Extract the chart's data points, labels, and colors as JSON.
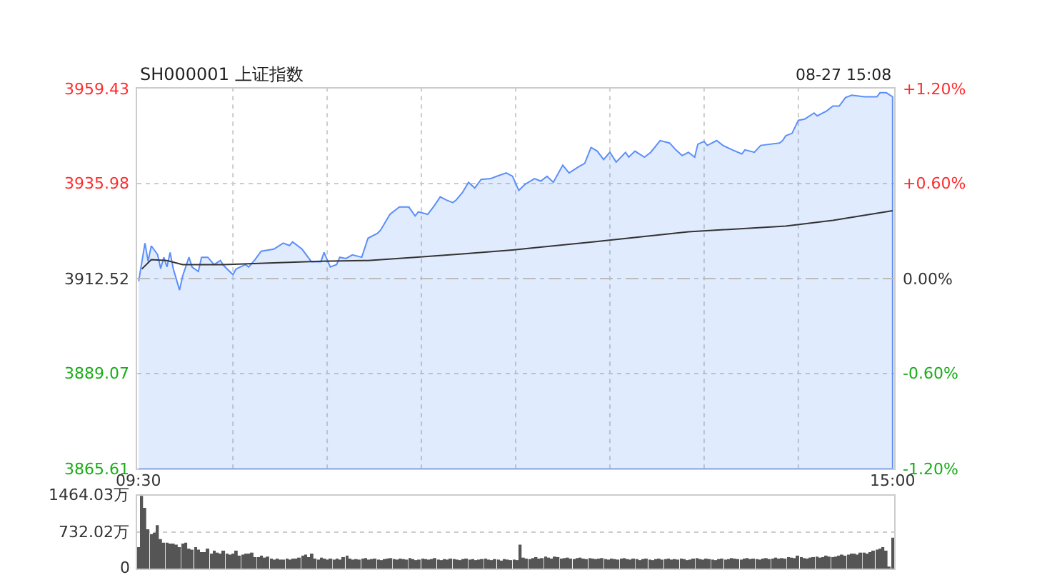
{
  "chart_data": [
    {
      "type": "area",
      "title": "SH000001 上证指数",
      "annotations": [
        "08-27 15:08"
      ],
      "categories": [
        "09:30",
        null,
        null,
        null,
        null,
        null,
        null,
        null,
        null,
        null,
        null,
        null,
        null,
        null,
        null,
        null,
        null,
        null,
        null,
        null,
        null,
        null,
        null,
        null,
        null,
        null,
        null,
        null,
        null,
        null,
        null,
        null,
        null,
        null,
        null,
        null,
        null,
        null,
        null,
        null,
        null,
        null,
        null,
        null,
        null,
        null,
        null,
        null,
        null,
        null,
        null,
        null,
        null,
        null,
        null,
        null,
        null,
        null,
        null,
        null,
        null,
        null,
        null,
        null,
        null,
        null,
        null,
        null,
        null,
        null,
        null,
        null,
        null,
        null,
        null,
        null,
        null,
        null,
        null,
        null,
        null,
        null,
        null,
        null,
        null,
        null,
        null,
        null,
        null,
        null,
        null,
        null,
        null,
        null,
        null,
        null,
        null,
        null,
        null,
        null,
        null,
        null,
        null,
        null,
        null,
        null,
        null,
        null,
        null,
        null,
        null,
        null,
        null,
        null,
        null,
        null,
        null,
        null,
        null,
        null,
        null,
        null,
        null,
        null,
        null,
        null,
        null,
        null,
        null,
        null,
        null,
        null,
        null,
        null,
        null,
        null,
        null,
        null,
        null,
        null,
        null,
        null,
        null,
        null,
        null,
        null,
        null,
        null,
        null,
        null,
        null,
        null,
        null,
        null,
        null,
        null,
        null,
        null,
        null,
        null,
        null,
        null,
        null,
        null,
        null,
        null,
        null,
        null,
        null,
        null,
        null,
        null,
        null,
        null,
        null,
        null,
        null,
        null,
        null,
        null,
        null,
        null,
        null,
        null,
        null,
        null,
        null,
        null,
        null,
        null,
        null,
        null,
        null,
        null,
        null,
        null,
        null,
        null,
        null,
        null,
        null,
        null,
        null,
        null,
        null,
        null,
        null,
        null,
        null,
        null,
        null,
        null,
        null,
        null,
        null,
        null,
        null,
        null,
        null,
        null,
        null,
        null,
        null,
        null,
        null,
        null,
        null,
        null,
        null,
        null,
        null,
        null,
        null,
        null,
        null,
        null,
        null,
        null,
        null,
        null,
        "15:00"
      ],
      "ylim": [
        3865.61,
        3959.43
      ],
      "yticks": [
        3865.61,
        3889.07,
        3912.52,
        3935.98,
        3959.43
      ],
      "y2lim": [
        -1.2,
        1.2
      ],
      "y2ticks": [
        {
          "value": -1.2,
          "label": "-1.20%"
        },
        {
          "value": -0.6,
          "label": "-0.60%"
        },
        {
          "value": 0,
          "label": "0.00%"
        },
        {
          "value": 0.6,
          "label": "+0.60%"
        },
        {
          "value": 1.2,
          "label": "+1.20%"
        }
      ],
      "grid": true,
      "ref_lines": [
        {
          "axis": "y",
          "value": 3912.52,
          "line_style": "dashed",
          "color": "#bbbbbb"
        }
      ],
      "series": [
        {
          "type": "area",
          "color": "#5b8ff9",
          "values": [
            3911.9,
            null,
            3921.3,
            3916.8,
            3920.6,
            null,
            3918.5,
            3915.0,
            3917.8,
            3915.4,
            3919.0,
            3915.0,
            null,
            3909.7,
            3913.2,
            null,
            3917.8,
            3915.4,
            null,
            3914.3,
            3917.8,
            null,
            3917.8,
            null,
            3916.0,
            null,
            3917.0,
            3915.8,
            null,
            null,
            3913.5,
            3914.9,
            null,
            null,
            3916.0,
            3915.4,
            null,
            3917.2,
            null,
            3919.3,
            null,
            null,
            null,
            3919.8,
            null,
            null,
            3921.3,
            null,
            3920.7,
            3921.6,
            null,
            null,
            3919.8,
            null,
            null,
            3916.7,
            null,
            null,
            3916.7,
            3919.0,
            null,
            3915.4,
            null,
            3916.0,
            3917.8,
            null,
            3917.5,
            null,
            3918.4,
            null,
            null,
            3917.8,
            null,
            3922.5,
            null,
            null,
            3923.7,
            3924.5,
            null,
            null,
            3928.4,
            null,
            null,
            3930.2,
            null,
            null,
            3930.2,
            null,
            3928.0,
            3929.0,
            null,
            null,
            3928.4,
            null,
            3930.4,
            null,
            3932.7,
            null,
            3931.9,
            null,
            3931.3,
            3931.9,
            null,
            3933.7,
            null,
            3936.3,
            null,
            3934.9,
            null,
            3937.0,
            null,
            null,
            3937.2,
            null,
            3937.8,
            null,
            null,
            3938.6,
            null,
            3937.8,
            null,
            3934.3,
            null,
            3935.8,
            null,
            null,
            3937.2,
            null,
            3936.6,
            null,
            3937.8,
            null,
            3936.3,
            null,
            null,
            3940.5,
            null,
            3938.6,
            null,
            null,
            3940.1,
            null,
            3941.0,
            null,
            3944.9,
            null,
            3944.0,
            null,
            3941.9,
            null,
            3943.7,
            null,
            3941.3,
            null,
            null,
            3943.7,
            3942.5,
            null,
            3944.0,
            null,
            null,
            3942.5,
            null,
            3943.7,
            null,
            null,
            3946.6,
            null,
            null,
            3946.0,
            null,
            3944.3,
            null,
            3942.9,
            null,
            3943.7,
            null,
            3942.5,
            3945.7,
            null,
            3946.4,
            3945.4,
            null,
            null,
            3946.6,
            null,
            3945.4,
            null,
            null,
            3944.3,
            null,
            null,
            3943.3,
            3944.3,
            null,
            null,
            3943.7,
            null,
            3945.4,
            null,
            null,
            3945.7,
            null,
            null,
            3946.0,
            3946.6,
            3947.8,
            null,
            3948.4,
            null,
            3951.6,
            null,
            3951.9,
            null,
            null,
            3953.4,
            3952.7,
            null,
            null,
            3953.9,
            null,
            3955.1,
            null,
            3955.1,
            null,
            3957.2,
            null,
            3957.8,
            null,
            null,
            null,
            3957.4,
            null,
            null,
            null,
            3957.4,
            3958.4,
            null,
            3958.4,
            null,
            3957.4
          ]
        },
        {
          "type": "line",
          "color": "#333333",
          "values": [
            null,
            3914.9,
            null,
            null,
            3917.2,
            null,
            null,
            null,
            null,
            3917.0,
            null,
            null,
            null,
            null,
            3916.0,
            null,
            null,
            null,
            null,
            null,
            null,
            null,
            null,
            null,
            null,
            null,
            null,
            3916.0,
            null,
            null,
            null,
            null,
            null,
            null,
            null,
            null,
            null,
            null,
            null,
            null,
            null,
            null,
            null,
            3916.4,
            null,
            null,
            null,
            null,
            null,
            null,
            null,
            null,
            null,
            null,
            null,
            null,
            null,
            null,
            3916.8,
            null,
            null,
            null,
            null,
            null,
            null,
            null,
            null,
            null,
            null,
            null,
            null,
            null,
            null,
            3917.0,
            null,
            null,
            null,
            null,
            null,
            null,
            null,
            null,
            null,
            null,
            null,
            null,
            null,
            null,
            3917.8,
            null,
            null,
            null,
            null,
            null,
            null,
            null,
            null,
            null,
            null,
            null,
            null,
            null,
            null,
            3918.6,
            null,
            null,
            null,
            null,
            null,
            null,
            null,
            null,
            null,
            null,
            null,
            null,
            null,
            null,
            null,
            3919.6,
            null,
            null,
            null,
            null,
            null,
            null,
            null,
            null,
            null,
            null,
            null,
            null,
            null,
            null,
            null,
            null,
            null,
            null,
            null,
            null,
            null,
            null,
            null,
            null,
            null,
            3921.6,
            null,
            null,
            null,
            null,
            null,
            null,
            null,
            null,
            null,
            null,
            null,
            null,
            null,
            null,
            null,
            null,
            null,
            null,
            null,
            null,
            null,
            null,
            null,
            null,
            null,
            null,
            null,
            null,
            null,
            3924.1,
            null,
            null,
            null,
            null,
            null,
            null,
            null,
            null,
            null,
            null,
            null,
            null,
            null,
            null,
            null,
            null,
            null,
            null,
            null,
            null,
            null,
            null,
            null,
            null,
            null,
            null,
            null,
            null,
            null,
            null,
            3925.5,
            null,
            null,
            null,
            null,
            null,
            null,
            null,
            null,
            null,
            null,
            null,
            null,
            null,
            null,
            3926.9,
            null,
            null,
            null,
            null,
            null,
            null,
            null,
            null,
            null,
            null,
            null,
            null,
            null,
            null,
            null,
            null,
            null,
            null,
            3929.3
          ]
        }
      ]
    },
    {
      "type": "bar",
      "ylim": [
        0,
        1464.03
      ],
      "categories": [
        null,
        null,
        null,
        null,
        null,
        null,
        null,
        null,
        null,
        null,
        null,
        null,
        null,
        null,
        null,
        null,
        null,
        null,
        null,
        null,
        null,
        null,
        null,
        null,
        null,
        null,
        null,
        null,
        null,
        null,
        null,
        null,
        null,
        null,
        null,
        null,
        null,
        null,
        null,
        null,
        null,
        null,
        null,
        null,
        null,
        null,
        null,
        null,
        null,
        null,
        null,
        null,
        null,
        null,
        null,
        null,
        null,
        null,
        null,
        null,
        null,
        null,
        null,
        null,
        null,
        null,
        null,
        null,
        null,
        null,
        null,
        null,
        null,
        null,
        null,
        null,
        null,
        null,
        null,
        null,
        null,
        null,
        null,
        null,
        null,
        null,
        null,
        null,
        null,
        null,
        null,
        null,
        null,
        null,
        null,
        null,
        null,
        null,
        null,
        null,
        null,
        null,
        null,
        null,
        null,
        null,
        null,
        null,
        null,
        null,
        null,
        null,
        null,
        null,
        null,
        null,
        null,
        null,
        null,
        null,
        null,
        null,
        null,
        null,
        null,
        null,
        null,
        null,
        null,
        null,
        null,
        null,
        null,
        null,
        null,
        null,
        null,
        null,
        null,
        null,
        null,
        null,
        null,
        null,
        null,
        null,
        null,
        null,
        null,
        null,
        null,
        null,
        null,
        null,
        null,
        null,
        null,
        null,
        null,
        null,
        null,
        null,
        null,
        null,
        null,
        null,
        null,
        null,
        null,
        null,
        null,
        null,
        null,
        null,
        null,
        null,
        null,
        null,
        null,
        null,
        null,
        null,
        null,
        null,
        null,
        null,
        null,
        null,
        null,
        null,
        null,
        null,
        null,
        null,
        null,
        null,
        null,
        null,
        null,
        null,
        null,
        null,
        null,
        null,
        null,
        null,
        null,
        null,
        null,
        null,
        null,
        null,
        null,
        null,
        null,
        null,
        null,
        null,
        null,
        null,
        null,
        null,
        null,
        null,
        null,
        null,
        null,
        null,
        null,
        null,
        null,
        null,
        null,
        null,
        null,
        null,
        null,
        null,
        null,
        null
      ],
      "yticks": [
        0,
        {
          "value": 732.02,
          "label": "732.02万"
        },
        {
          "value": 1464.03,
          "label": "1464.03万"
        }
      ],
      "grid": "y",
      "tick_labels": "y",
      "series": [
        {
          "color": "#555555",
          "values": [
            430,
            1460,
            1220,
            790,
            690,
            720,
            870,
            590,
            520,
            520,
            500,
            500,
            480,
            430,
            500,
            520,
            400,
            380,
            430,
            380,
            330,
            330,
            400,
            300,
            360,
            320,
            300,
            360,
            300,
            280,
            300,
            360,
            260,
            280,
            300,
            300,
            320,
            230,
            230,
            260,
            220,
            240,
            200,
            180,
            200,
            180,
            180,
            200,
            180,
            200,
            200,
            220,
            260,
            280,
            230,
            300,
            200,
            180,
            220,
            200,
            180,
            200,
            180,
            200,
            180,
            230,
            260,
            200,
            180,
            190,
            180,
            200,
            210,
            180,
            190,
            200,
            180,
            170,
            190,
            200,
            210,
            190,
            180,
            200,
            190,
            180,
            210,
            190,
            170,
            180,
            200,
            190,
            180,
            190,
            210,
            180,
            170,
            190,
            180,
            200,
            190,
            180,
            170,
            190,
            200,
            180,
            190,
            170,
            180,
            190,
            200,
            180,
            170,
            190,
            180,
            160,
            190,
            180,
            170,
            180,
            170,
            480,
            220,
            200,
            190,
            210,
            230,
            200,
            210,
            240,
            220,
            200,
            240,
            230,
            200,
            210,
            220,
            200,
            190,
            210,
            220,
            200,
            190,
            210,
            200,
            190,
            200,
            210,
            190,
            180,
            200,
            190,
            180,
            200,
            210,
            190,
            180,
            200,
            190,
            170,
            190,
            200,
            180,
            170,
            190,
            200,
            180,
            190,
            200,
            180,
            190,
            180,
            200,
            190,
            170,
            180,
            200,
            210,
            190,
            180,
            200,
            190,
            180,
            170,
            190,
            200,
            180,
            190,
            210,
            200,
            190,
            180,
            200,
            210,
            190,
            200,
            190,
            180,
            200,
            210,
            190,
            200,
            220,
            200,
            210,
            200,
            230,
            220,
            210,
            260,
            230,
            210,
            200,
            220,
            230,
            240,
            220,
            230,
            260,
            240,
            230,
            240,
            260,
            280,
            260,
            280,
            300,
            300,
            280,
            320,
            320,
            300,
            330,
            360,
            380,
            400,
            430,
            360,
            40,
            620
          ]
        }
      ]
    }
  ]
}
